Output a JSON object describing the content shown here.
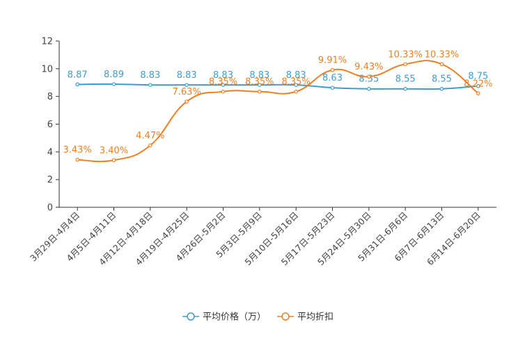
{
  "chart_data": {
    "type": "line",
    "title": "",
    "xlabel": "",
    "ylabel": "",
    "ylim": [
      0,
      12
    ],
    "yticks": [
      "0",
      "2",
      "4",
      "6",
      "8",
      "10",
      "12"
    ],
    "categories": [
      "3月29日-4月4日",
      "4月5日-4月11日",
      "4月12日-4月18日",
      "4月19日-4月25日",
      "4月26日-5月2日",
      "5月3日-5月9日",
      "5月10日-5月16日",
      "5月17日-5月23日",
      "5月24日-5月30日",
      "5月31日-6月6日",
      "6月7日-6月13日",
      "6月14日-6月20日"
    ],
    "series": [
      {
        "name": "平均价格（万）",
        "color": "#3b9ed0",
        "values": [
          8.87,
          8.89,
          8.83,
          8.83,
          8.83,
          8.83,
          8.83,
          8.63,
          8.55,
          8.55,
          8.55,
          8.75
        ],
        "labels": [
          "8.87",
          "8.89",
          "8.83",
          "8.83",
          "8.83",
          "8.83",
          "8.83",
          "8.63",
          "8.55",
          "8.55",
          "8.55",
          "8.75"
        ]
      },
      {
        "name": "平均折扣",
        "color": "#f07e1e",
        "values": [
          3.43,
          3.4,
          4.47,
          7.63,
          8.35,
          8.35,
          8.35,
          9.91,
          9.43,
          10.33,
          10.33,
          8.22
        ],
        "labels": [
          "3.43%",
          "3.40%",
          "4.47%",
          "7.63%",
          "8.35%",
          "8.35%",
          "8.35%",
          "9.91%",
          "9.43%",
          "10.33%",
          "10.33%",
          "8.22%"
        ]
      }
    ],
    "legend_position": "bottom-center"
  }
}
